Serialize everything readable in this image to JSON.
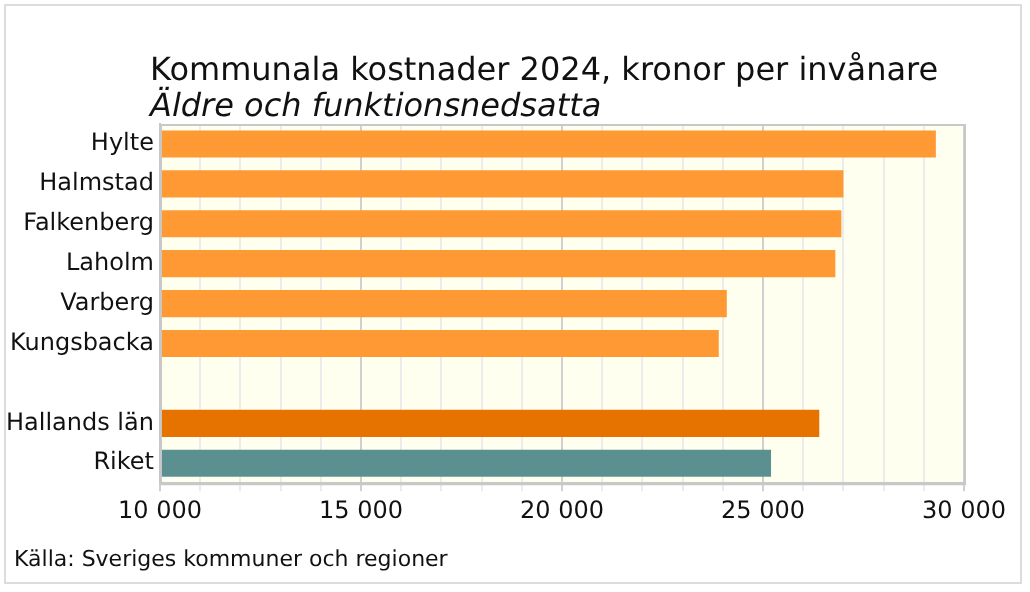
{
  "chart_data": {
    "type": "bar",
    "orientation": "horizontal",
    "title": "Kommunala kostnader 2024, kronor per invånare",
    "subtitle": "Äldre och funktionsnedsatta",
    "categories": [
      "Hylte",
      "Halmstad",
      "Falkenberg",
      "Laholm",
      "Varberg",
      "Kungsbacka",
      null,
      "Hallands län",
      "Riket"
    ],
    "values": [
      29300,
      27000,
      26950,
      26800,
      24100,
      23900,
      null,
      26400,
      25200
    ],
    "colors": [
      "#ff9933",
      "#ff9933",
      "#ff9933",
      "#ff9933",
      "#ff9933",
      "#ff9933",
      "#ff9933",
      "#e67300",
      "#5b9090"
    ],
    "xlim": [
      10000,
      30000
    ],
    "xticks": [
      {
        "value": 10000,
        "label": "10 000"
      },
      {
        "value": 11000,
        "label": null
      },
      {
        "value": 12000,
        "label": null
      },
      {
        "value": 13000,
        "label": null
      },
      {
        "value": 14000,
        "label": null
      },
      {
        "value": 15000,
        "label": "15 000"
      },
      {
        "value": 16000,
        "label": null
      },
      {
        "value": 17000,
        "label": null
      },
      {
        "value": 18000,
        "label": null
      },
      {
        "value": 19000,
        "label": null
      },
      {
        "value": 20000,
        "label": "20 000"
      },
      {
        "value": 21000,
        "label": null
      },
      {
        "value": 22000,
        "label": null
      },
      {
        "value": 23000,
        "label": null
      },
      {
        "value": 24000,
        "label": null
      },
      {
        "value": 25000,
        "label": "25 000"
      },
      {
        "value": 26000,
        "label": null
      },
      {
        "value": 27000,
        "label": null
      },
      {
        "value": 28000,
        "label": null
      },
      {
        "value": 29000,
        "label": null
      },
      {
        "value": 30000,
        "label": "30 000"
      }
    ],
    "grid": "x",
    "annotations": [
      "Källa: Sveriges kommuner och regioner"
    ]
  }
}
